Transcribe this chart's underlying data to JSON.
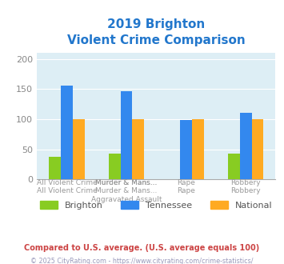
{
  "title_line1": "2019 Brighton",
  "title_line2": "Violent Crime Comparison",
  "title_color": "#2277cc",
  "cat_labels_line1": [
    "",
    "Murder & Mans...",
    "",
    ""
  ],
  "cat_labels_line2": [
    "All Violent Crime",
    "Aggravated Assault",
    "Rape",
    "Robbery"
  ],
  "brighton": [
    37,
    43,
    0,
    43
  ],
  "tennessee": [
    156,
    147,
    98,
    110
  ],
  "national": [
    100,
    100,
    100,
    100
  ],
  "brighton_color": "#88cc22",
  "tennessee_color": "#3388ee",
  "national_color": "#ffaa22",
  "bg_color": "#ddeef5",
  "ylim": [
    0,
    210
  ],
  "yticks": [
    0,
    50,
    100,
    150,
    200
  ],
  "footnote1": "Compared to U.S. average. (U.S. average equals 100)",
  "footnote2": "© 2025 CityRating.com - https://www.cityrating.com/crime-statistics/",
  "footnote1_color": "#cc4444",
  "footnote2_color": "#9999bb",
  "legend_labels": [
    "Brighton",
    "Tennessee",
    "National"
  ]
}
